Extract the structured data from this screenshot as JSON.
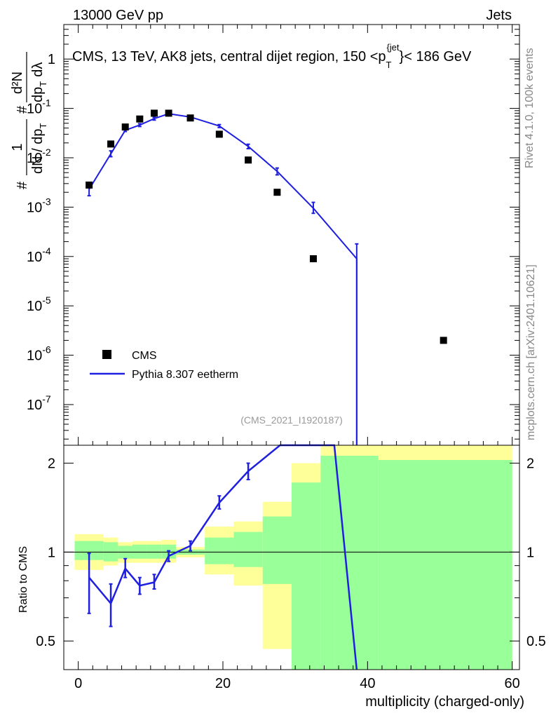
{
  "header": {
    "left": "13000 GeV pp",
    "right": "Jets"
  },
  "side": {
    "rivet": "Rivet 4.1.0,  100k events",
    "mcplots": "mcplots.cern.ch [arXiv:2401.10621]"
  },
  "chart_data": {
    "type": "scatter",
    "title": "CMS, 13 TeV, AK8 jets, central dijet region, 150 <p_T^{jet}< 186 GeV",
    "title_parts": {
      "before": "CMS, 13 TeV, AK8 jets, central dijet region, 150 <p",
      "sub": "T",
      "sup": "{jet",
      "after": "}< 186 GeV"
    },
    "ylabel_parts": {
      "hash": "#",
      "one": "1",
      "dN": "dN / dp",
      "dN_sub": "T",
      "rhs_num": "d²N",
      "rhs_den": "dp",
      "rhs_den_sub": "T",
      "rhs_dl": "dλ"
    },
    "ratio_ylabel": "Ratio to CMS",
    "xlabel": "multiplicity (charged-only)",
    "analysis_id": "(CMS_2021_I1920187)",
    "xlim": [
      -2,
      61
    ],
    "ylim_log": [
      1.5e-08,
      5
    ],
    "ratio_ylim": [
      0.4,
      2.3
    ],
    "x_ticks": [
      "0",
      "20",
      "40",
      "60"
    ],
    "y_ticks_main": [
      {
        "base": "10",
        "exp": "-7"
      },
      {
        "base": "10",
        "exp": "-6"
      },
      {
        "base": "10",
        "exp": "-5"
      },
      {
        "base": "10",
        "exp": "-4"
      },
      {
        "base": "10",
        "exp": "-3"
      },
      {
        "base": "10",
        "exp": "-2"
      },
      {
        "base": "10",
        "exp": "-1"
      },
      {
        "base": "1",
        "exp": ""
      }
    ],
    "y_ticks_ratio": [
      "0.5",
      "1",
      "2"
    ],
    "legend": {
      "cms": "CMS",
      "pythia": "Pythia 8.307 eetherm"
    },
    "series": [
      {
        "name": "CMS",
        "x": [
          1.5,
          4.5,
          6.5,
          8.5,
          10.5,
          12.5,
          15.5,
          19.5,
          23.5,
          27.5,
          32.5,
          50.5
        ],
        "values": [
          0.0028,
          0.019,
          0.042,
          0.061,
          0.08,
          0.08,
          0.064,
          0.03,
          0.009,
          0.002,
          9e-05,
          2e-06
        ]
      },
      {
        "name": "Pythia 8.307 eetherm",
        "x": [
          1.5,
          4.5,
          6.5,
          8.5,
          10.5,
          12.5,
          15.5,
          19.5,
          23.5,
          27.5,
          32.5,
          38.5
        ],
        "values": [
          0.0023,
          0.012,
          0.036,
          0.046,
          0.062,
          0.078,
          0.067,
          0.044,
          0.017,
          0.0053,
          0.00095,
          9e-05
        ],
        "err_low": [
          0.0017,
          0.0105,
          0.034,
          0.043,
          0.058,
          0.074,
          0.064,
          0.041,
          0.0153,
          0.0045,
          0.00075,
          1e-08
        ],
        "err_high": [
          0.0031,
          0.0138,
          0.038,
          0.049,
          0.066,
          0.082,
          0.07,
          0.047,
          0.0188,
          0.0062,
          0.00125,
          0.00018
        ]
      }
    ],
    "ratio": {
      "x": [
        1.5,
        4.5,
        6.5,
        8.5,
        10.5,
        12.5,
        15.5,
        19.5,
        23.5
      ],
      "values": [
        0.82,
        0.67,
        0.88,
        0.77,
        0.79,
        0.97,
        1.05,
        1.47,
        1.88
      ],
      "err_low": [
        0.62,
        0.56,
        0.82,
        0.72,
        0.75,
        0.93,
        1.01,
        1.4,
        1.76
      ],
      "err_high": [
        0.99,
        0.78,
        0.95,
        0.82,
        0.84,
        1.01,
        1.09,
        1.55,
        2.0
      ],
      "line_extra": [
        {
          "x": 27.9,
          "y": 2.3
        },
        {
          "x": 35.4,
          "y": 2.3
        },
        {
          "x": 38.5,
          "y": 0.4
        }
      ],
      "band_bins": [
        {
          "lo": -0.5,
          "hi": 3.5,
          "y_lo": 0.87,
          "y_hi": 1.15,
          "g_lo": 0.94,
          "g_hi": 1.09
        },
        {
          "lo": 3.5,
          "hi": 5.5,
          "y_lo": 0.9,
          "y_hi": 1.12,
          "g_lo": 0.93,
          "g_hi": 1.08
        },
        {
          "lo": 5.5,
          "hi": 7.5,
          "y_lo": 0.92,
          "y_hi": 1.08,
          "g_lo": 0.95,
          "g_hi": 1.05
        },
        {
          "lo": 7.5,
          "hi": 9.5,
          "y_lo": 0.92,
          "y_hi": 1.09,
          "g_lo": 0.95,
          "g_hi": 1.06
        },
        {
          "lo": 9.5,
          "hi": 11.5,
          "y_lo": 0.92,
          "y_hi": 1.09,
          "g_lo": 0.95,
          "g_hi": 1.06
        },
        {
          "lo": 11.5,
          "hi": 13.5,
          "y_lo": 0.92,
          "y_hi": 1.1,
          "g_lo": 0.95,
          "g_hi": 1.06
        },
        {
          "lo": 13.5,
          "hi": 17.5,
          "y_lo": 0.96,
          "y_hi": 1.04,
          "g_lo": 0.98,
          "g_hi": 1.02
        },
        {
          "lo": 17.5,
          "hi": 21.5,
          "y_lo": 0.84,
          "y_hi": 1.22,
          "g_lo": 0.91,
          "g_hi": 1.12
        },
        {
          "lo": 21.5,
          "hi": 25.5,
          "y_lo": 0.77,
          "y_hi": 1.27,
          "g_lo": 0.89,
          "g_hi": 1.17
        },
        {
          "lo": 25.5,
          "hi": 29.5,
          "y_lo": 0.47,
          "y_hi": 1.48,
          "g_lo": 0.78,
          "g_hi": 1.32
        },
        {
          "lo": 29.5,
          "hi": 33.5,
          "y_lo": 0.4,
          "y_hi": 2.0,
          "g_lo": 0.4,
          "g_hi": 1.72
        },
        {
          "lo": 33.5,
          "hi": 35.5,
          "y_lo": 0.4,
          "y_hi": 2.3,
          "g_lo": 0.4,
          "g_hi": 2.12
        },
        {
          "lo": 35.5,
          "hi": 41.5,
          "y_lo": 0.4,
          "y_hi": 2.3,
          "g_lo": 0.4,
          "g_hi": 2.12
        },
        {
          "lo": 41.5,
          "hi": 60,
          "y_lo": 0.4,
          "y_hi": 2.3,
          "g_lo": 0.4,
          "g_hi": 2.05
        }
      ]
    }
  }
}
